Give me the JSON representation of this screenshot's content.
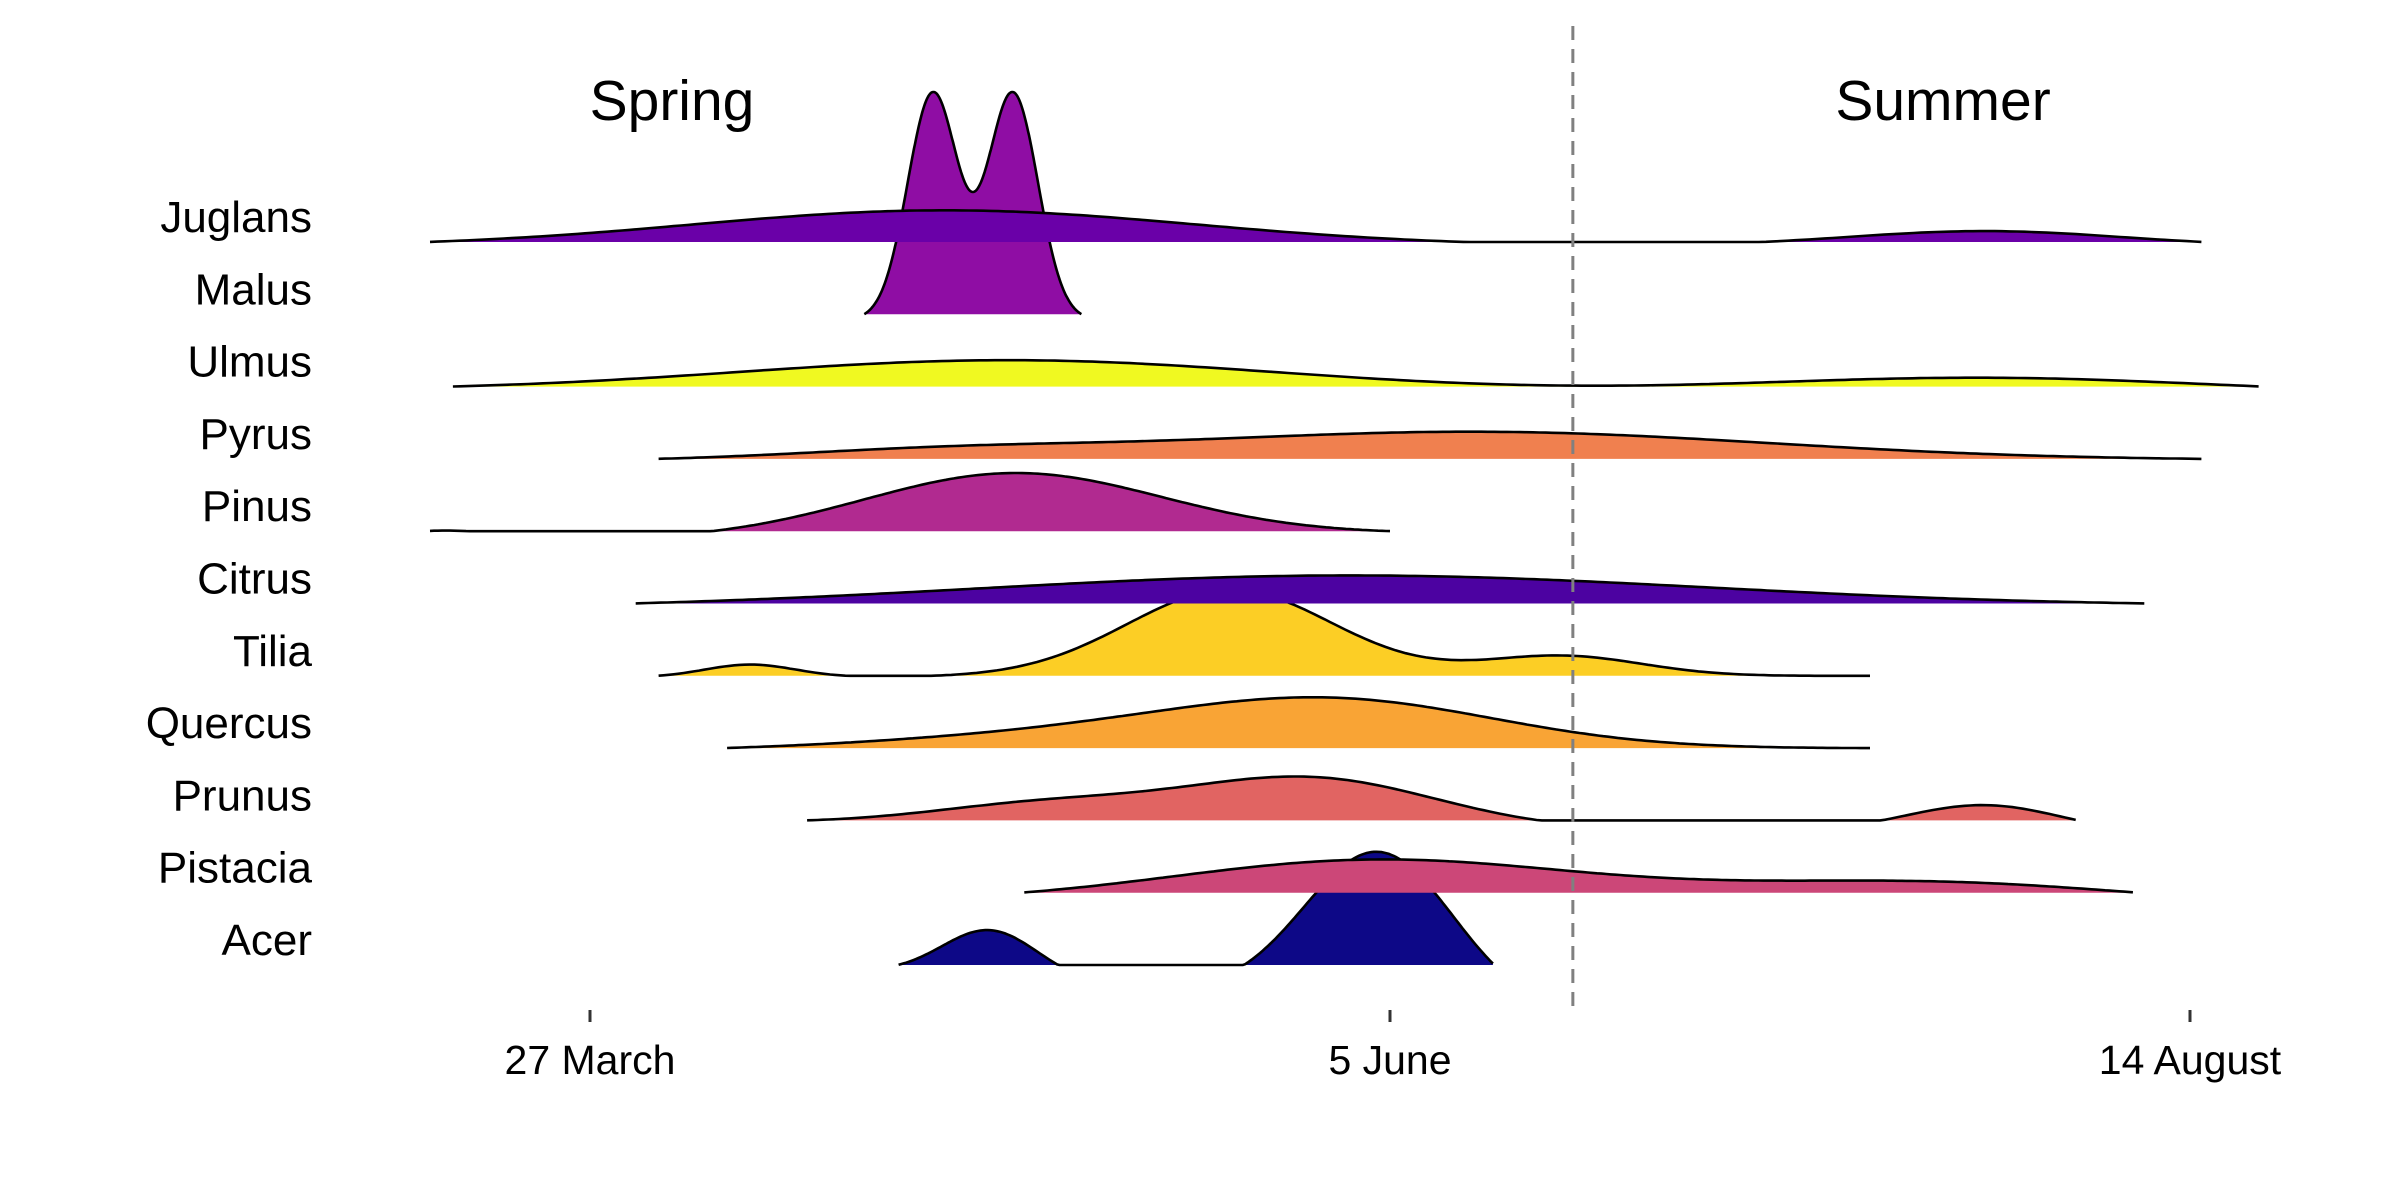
{
  "chart_data": {
    "type": "ridgeline",
    "season_labels": {
      "spring": "Spring",
      "summer": "Summer"
    },
    "x_axis": {
      "ticks": [
        {
          "date": "2019-03-27",
          "label": "27 March"
        },
        {
          "date": "2019-06-05",
          "label": "5 June"
        },
        {
          "date": "2019-08-14",
          "label": "14 August"
        }
      ],
      "range": [
        "2019-03-13",
        "2019-08-22"
      ]
    },
    "season_boundary": "2019-06-21",
    "series": [
      {
        "name": "Juglans",
        "color": "#6A00A8",
        "range": [
          "2019-03-13",
          "2019-08-15"
        ],
        "peaks": [
          {
            "date": "2019-04-27",
            "height": 0.62,
            "sd": 22
          },
          {
            "date": "2019-07-27",
            "height": 0.26,
            "sd": 12
          }
        ]
      },
      {
        "name": "Malus",
        "color": "#8F0DA4",
        "range": [
          "2019-04-20",
          "2019-05-09"
        ],
        "peaks": [
          {
            "date": "2019-04-26",
            "height": 3.9,
            "sd": 2.2
          },
          {
            "date": "2019-05-03",
            "height": 3.9,
            "sd": 2.2
          }
        ]
      },
      {
        "name": "Ulmus",
        "color": "#F0F921",
        "range": [
          "2019-03-15",
          "2019-08-20"
        ],
        "peaks": [
          {
            "date": "2019-05-03",
            "height": 0.54,
            "sd": 24
          },
          {
            "date": "2019-07-27",
            "height": 0.27,
            "sd": 20
          }
        ]
      },
      {
        "name": "Pyrus",
        "color": "#F0804F",
        "range": [
          "2019-04-02",
          "2019-08-15"
        ],
        "peaks": [
          {
            "date": "2019-04-27",
            "height": 0.15,
            "sd": 14
          },
          {
            "date": "2019-06-12",
            "height": 0.5,
            "sd": 26
          }
        ]
      },
      {
        "name": "Pinus",
        "color": "#B12A90",
        "range": [
          "2019-03-13",
          "2019-06-05"
        ],
        "peaks": [
          {
            "date": "2019-03-14",
            "height": 0.19,
            "sd": 6
          },
          {
            "date": "2019-05-03",
            "height": 1.1,
            "sd": 13
          }
        ]
      },
      {
        "name": "Citrus",
        "color": "#4C02A1",
        "range": [
          "2019-03-31",
          "2019-08-10"
        ],
        "peaks": [
          {
            "date": "2019-06-01",
            "height": 0.55,
            "sd": 32
          }
        ]
      },
      {
        "name": "Tilia",
        "color": "#FCCE25",
        "range": [
          "2019-04-02",
          "2019-07-17"
        ],
        "peaks": [
          {
            "date": "2019-04-10",
            "height": 0.22,
            "sd": 4
          },
          {
            "date": "2019-05-22",
            "height": 1.5,
            "sd": 9
          },
          {
            "date": "2019-06-20",
            "height": 0.35,
            "sd": 7
          }
        ]
      },
      {
        "name": "Quercus",
        "color": "#F9A435",
        "range": [
          "2019-04-08",
          "2019-07-17"
        ],
        "peaks": [
          {
            "date": "2019-05-15",
            "height": 0.35,
            "sd": 20
          },
          {
            "date": "2019-06-01",
            "height": 0.65,
            "sd": 14
          }
        ]
      },
      {
        "name": "Prunus",
        "color": "#E16462",
        "range": [
          "2019-04-15",
          "2019-08-04"
        ],
        "peaks": [
          {
            "date": "2019-05-06",
            "height": 0.35,
            "sd": 10
          },
          {
            "date": "2019-05-29",
            "height": 0.85,
            "sd": 11
          },
          {
            "date": "2019-07-27",
            "height": 0.5,
            "sd": 7
          }
        ]
      },
      {
        "name": "Pistacia",
        "color": "#CC4778",
        "range": [
          "2019-05-04",
          "2019-08-09"
        ],
        "peaks": [
          {
            "date": "2019-06-04",
            "height": 0.75,
            "sd": 18
          },
          {
            "date": "2019-07-22",
            "height": 0.4,
            "sd": 18
          }
        ]
      },
      {
        "name": "Acer",
        "color": "#0D0887",
        "range": [
          "2019-04-23",
          "2019-06-14"
        ],
        "peaks": [
          {
            "date": "2019-05-01",
            "height": 0.83,
            "sd": 4.2
          },
          {
            "date": "2019-06-04",
            "height": 2.6,
            "sd": 6.5
          }
        ]
      }
    ]
  }
}
